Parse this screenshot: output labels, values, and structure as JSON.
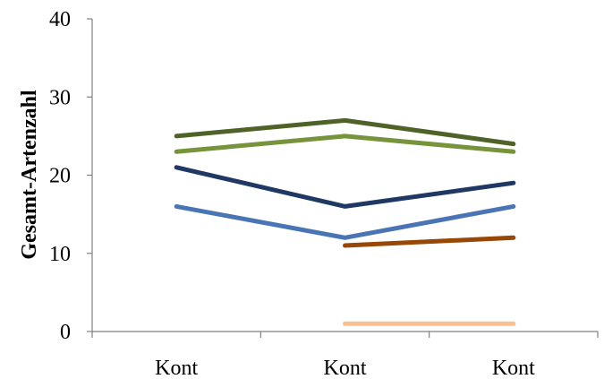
{
  "chart_data": {
    "type": "line",
    "categories": [
      "Kont",
      "Kont",
      "Kont"
    ],
    "ylabel": "Gesamt-Artenzahl",
    "ylim": [
      0,
      40
    ],
    "yticks": [
      0,
      10,
      20,
      30,
      40
    ],
    "grid": false,
    "legend": "none",
    "series": [
      {
        "color": "#4f6228",
        "values": [
          25,
          27,
          24
        ]
      },
      {
        "color": "#77933c",
        "values": [
          23,
          25,
          23
        ]
      },
      {
        "color": "#1f3864",
        "values": [
          21,
          16,
          19
        ]
      },
      {
        "color": "#4a75b5",
        "values": [
          16,
          12,
          16
        ]
      },
      {
        "color": "#974706",
        "values": [
          null,
          11,
          12
        ]
      },
      {
        "color": "#fac090",
        "values": [
          null,
          1,
          1
        ]
      }
    ]
  }
}
